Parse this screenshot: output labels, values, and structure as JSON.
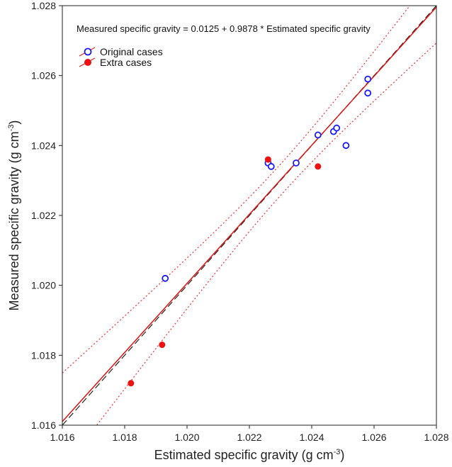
{
  "chart_data": {
    "type": "scatter",
    "xlabel": "Estimated specific gravity (g cm",
    "xlabel_sup": "-3",
    "xlabel_end": ")",
    "ylabel": "Measured specific gravity (g cm",
    "ylabel_sup": "-3",
    "ylabel_end": ")",
    "xlim": [
      1.016,
      1.028
    ],
    "ylim": [
      1.016,
      1.028
    ],
    "xticks": [
      "1.016",
      "1.018",
      "1.020",
      "1.022",
      "1.024",
      "1.026",
      "1.028"
    ],
    "yticks": [
      "1.016",
      "1.018",
      "1.020",
      "1.022",
      "1.024",
      "1.026",
      "1.028"
    ],
    "grid": false,
    "annotation": "Measured specific gravity = 0.0125 + 0.9878 * Estimated specific gravity",
    "legend_position": "top-left",
    "series": [
      {
        "name": "Original cases",
        "marker": "open-circle",
        "color": "#1a1aff",
        "points": [
          [
            1.0193,
            1.0202
          ],
          [
            1.0226,
            1.0235
          ],
          [
            1.0227,
            1.0234
          ],
          [
            1.0235,
            1.0235
          ],
          [
            1.0242,
            1.0243
          ],
          [
            1.0247,
            1.0244
          ],
          [
            1.0248,
            1.0245
          ],
          [
            1.0251,
            1.024
          ],
          [
            1.0258,
            1.0259
          ],
          [
            1.0258,
            1.0255
          ]
        ]
      },
      {
        "name": "Extra cases",
        "marker": "filled-circle",
        "color": "#ee1111",
        "points": [
          [
            1.0182,
            1.0172
          ],
          [
            1.0192,
            1.0183
          ],
          [
            1.0226,
            1.0236
          ],
          [
            1.0242,
            1.0234
          ]
        ]
      }
    ],
    "regression": {
      "intercept": 0.0125,
      "slope": 0.9878,
      "color": "#dd1111"
    },
    "identity_line": {
      "color": "#222222"
    },
    "confidence_band_color": "#ee3333"
  }
}
